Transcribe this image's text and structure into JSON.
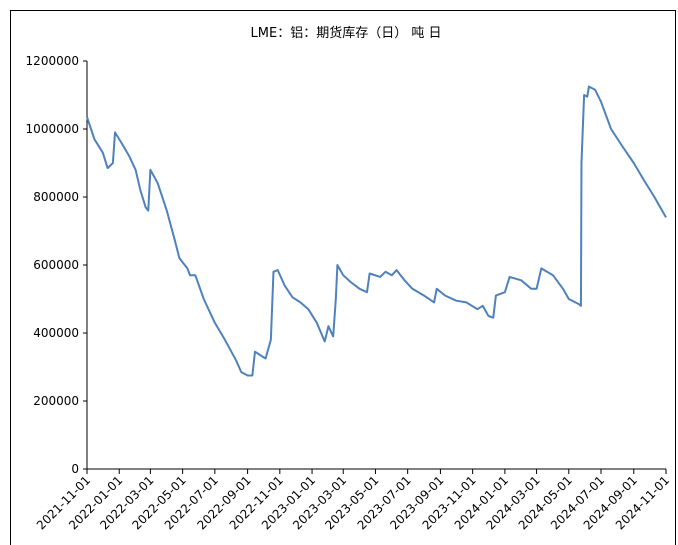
{
  "chart_data": {
    "type": "line",
    "title": "LME：铝：期货库存（日） 吨 日",
    "x": [
      "2021-11-01",
      "2021-11-15",
      "2021-12-01",
      "2021-12-10",
      "2021-12-20",
      "2021-12-24",
      "2022-01-05",
      "2022-01-20",
      "2022-02-01",
      "2022-02-10",
      "2022-02-20",
      "2022-02-25",
      "2022-03-01",
      "2022-03-15",
      "2022-04-01",
      "2022-04-15",
      "2022-04-25",
      "2022-05-10",
      "2022-05-15",
      "2022-05-25",
      "2022-06-10",
      "2022-07-01",
      "2022-07-20",
      "2022-08-10",
      "2022-08-20",
      "2022-09-01",
      "2022-09-10",
      "2022-09-15",
      "2022-09-25",
      "2022-10-05",
      "2022-10-15",
      "2022-10-20",
      "2022-10-28",
      "2022-11-10",
      "2022-11-25",
      "2022-12-10",
      "2022-12-25",
      "2023-01-10",
      "2023-01-25",
      "2023-02-01",
      "2023-02-10",
      "2023-02-15",
      "2023-02-18",
      "2023-03-01",
      "2023-03-15",
      "2023-04-01",
      "2023-04-15",
      "2023-04-20",
      "2023-05-10",
      "2023-05-20",
      "2023-06-01",
      "2023-06-10",
      "2023-06-25",
      "2023-07-10",
      "2023-08-01",
      "2023-08-20",
      "2023-08-25",
      "2023-09-10",
      "2023-10-01",
      "2023-10-20",
      "2023-11-10",
      "2023-11-20",
      "2023-12-01",
      "2023-12-10",
      "2023-12-15",
      "2024-01-01",
      "2024-01-10",
      "2024-02-01",
      "2024-02-20",
      "2024-03-01",
      "2024-03-10",
      "2024-04-01",
      "2024-04-20",
      "2024-05-01",
      "2024-05-20",
      "2024-05-24",
      "2024-05-25",
      "2024-05-30",
      "2024-06-05",
      "2024-06-08",
      "2024-06-20",
      "2024-07-01",
      "2024-07-20",
      "2024-08-10",
      "2024-09-01",
      "2024-09-20",
      "2024-10-10",
      "2024-11-01"
    ],
    "series": [
      {
        "color": "#4f81bd",
        "values": [
          1035000,
          970000,
          930000,
          885000,
          900000,
          990000,
          960000,
          920000,
          880000,
          820000,
          770000,
          760000,
          880000,
          840000,
          760000,
          680000,
          620000,
          590000,
          570000,
          570000,
          500000,
          430000,
          380000,
          320000,
          285000,
          275000,
          275000,
          345000,
          335000,
          325000,
          380000,
          580000,
          585000,
          540000,
          505000,
          490000,
          470000,
          430000,
          375000,
          420000,
          390000,
          500000,
          600000,
          570000,
          550000,
          530000,
          520000,
          575000,
          565000,
          580000,
          570000,
          585000,
          555000,
          530000,
          510000,
          490000,
          530000,
          510000,
          495000,
          490000,
          470000,
          480000,
          450000,
          445000,
          510000,
          520000,
          565000,
          555000,
          530000,
          530000,
          590000,
          570000,
          530000,
          500000,
          485000,
          480000,
          900000,
          1100000,
          1095000,
          1125000,
          1115000,
          1080000,
          1000000,
          950000,
          900000,
          850000,
          800000,
          740000
        ]
      }
    ],
    "xlim": [
      "2021-11-01",
      "2024-11-01"
    ],
    "xticks": [
      "2021-11-01",
      "2022-01-01",
      "2022-03-01",
      "2022-05-01",
      "2022-07-01",
      "2022-09-01",
      "2022-11-01",
      "2023-01-01",
      "2023-03-01",
      "2023-05-01",
      "2023-07-01",
      "2023-09-01",
      "2023-11-01",
      "2024-01-01",
      "2024-03-01",
      "2024-05-01",
      "2024-07-01",
      "2024-09-01",
      "2024-11-01"
    ],
    "ylim": [
      0,
      1200000
    ],
    "yticks": [
      0,
      200000,
      400000,
      600000,
      800000,
      1000000,
      1200000
    ],
    "grid": false
  }
}
